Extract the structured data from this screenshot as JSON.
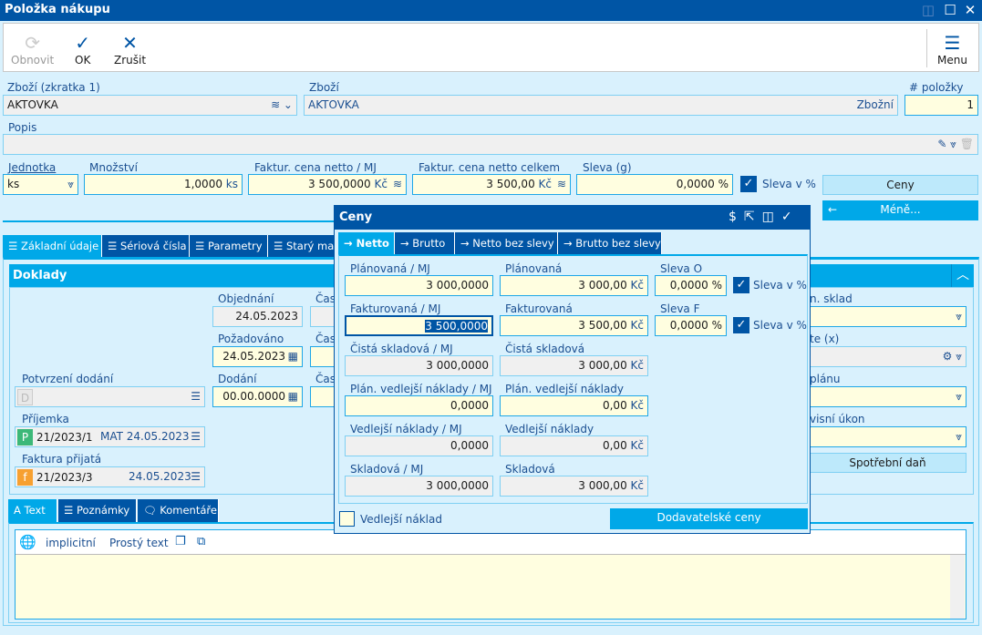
{
  "window": {
    "title": "Položka nákupu"
  },
  "toolbar": {
    "refresh": "Obnovit",
    "ok": "OK",
    "cancel": "Zrušit",
    "menu": "Menu"
  },
  "header": {
    "goods_short_label": "Zboží (zkratka 1)",
    "goods_short_value": "AKTOVKA",
    "goods_label": "Zboží",
    "goods_value": "AKTOVKA",
    "goods_type": "Zbožní",
    "item_no_label": "# položky",
    "item_no_value": "1",
    "desc_label": "Popis",
    "desc_value": "",
    "unit_label": "Jednotka",
    "unit_value": "ks",
    "qty_label": "Množství",
    "qty_value": "1,0000",
    "qty_unit": "ks",
    "price_unit_label": "Faktur. cena netto / MJ",
    "price_unit_value": "3 500,0000",
    "currency": "Kč",
    "price_total_label": "Faktur. cena netto celkem",
    "price_total_value": "3 500,00",
    "discount_label": "Sleva (g)",
    "discount_value": "0,0000 %",
    "discount_pct_label": "Sleva v %",
    "discount_pct_checked": true,
    "prices_button": "Ceny",
    "less_button": "Méně..."
  },
  "tabs": [
    "Základní údaje",
    "Sériová čísla",
    "Parametry",
    "Starý maj"
  ],
  "doklady": {
    "title": "Doklady",
    "ordered_label": "Objednání",
    "ordered_value": "24.05.2023",
    "time_label": "Čas",
    "required_label": "Požadováno",
    "required_value": "24.05.2023",
    "delivery_label": "Dodání",
    "delivery_value": "00.00.0000",
    "delivery_confirm_label": "Potvrzení dodání",
    "delivery_confirm_badge": "D",
    "receipt_label": "Příjemka",
    "receipt_badge": "P",
    "receipt_no": "21/2023/1",
    "receipt_info": "MAT 24.05.2023",
    "invoice_label": "Faktura přijatá",
    "invoice_badge": "f",
    "invoice_no": "21/2023/3",
    "invoice_date": "24.05.2023",
    "right_labels": [
      "n. sklad",
      "te (x)",
      "plánu",
      "visní úkon"
    ],
    "excise_button": "Spotřební daň"
  },
  "text_tabs": [
    "Text",
    "Poznámky",
    "Komentáře"
  ],
  "text_toolbar": {
    "language": "implicitní",
    "format": "Prostý text"
  },
  "ceny": {
    "title": "Ceny",
    "tabs": [
      "Netto",
      "Brutto",
      "Netto bez slevy",
      "Brutto bez slevy"
    ],
    "rows": [
      {
        "l1": "Plánovaná / MJ",
        "v1": "3 000,0000",
        "l2": "Plánovaná",
        "v2": "3 000,00",
        "l3": "Sleva O",
        "v3": "0,0000 %",
        "chk": "Sleva v %"
      },
      {
        "l1": "Fakturovaná / MJ",
        "v1": "3 500,0000",
        "l2": "Fakturovaná",
        "v2": "3 500,00",
        "l3": "Sleva F",
        "v3": "0,0000 %",
        "chk": "Sleva v %"
      },
      {
        "l1": "Čistá skladová / MJ",
        "v1": "3 000,0000",
        "l2": "Čistá skladová",
        "v2": "3 000,00"
      },
      {
        "l1": "Plán. vedlejší náklady / MJ",
        "v1": "0,0000",
        "l2": "Plán. vedlejší náklady",
        "v2": "0,00"
      },
      {
        "l1": "Vedlejší náklady / MJ",
        "v1": "0,0000",
        "l2": "Vedlejší náklady",
        "v2": "0,00"
      },
      {
        "l1": "Skladová / MJ",
        "v1": "3 000,0000",
        "l2": "Skladová",
        "v2": "3 000,00"
      }
    ],
    "currency": "Kč",
    "side_cost_label": "Vedlejší náklad",
    "side_cost_checked": false,
    "supplier_prices_button": "Dodavatelské ceny"
  }
}
